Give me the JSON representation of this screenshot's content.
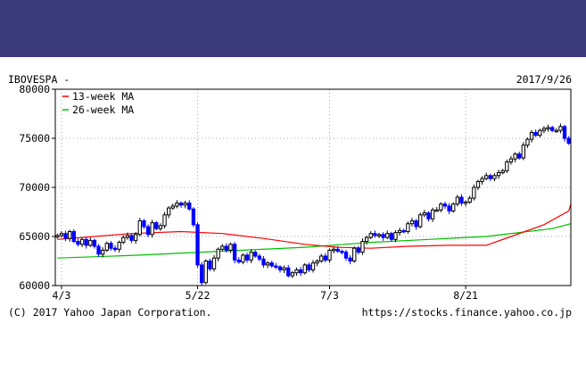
{
  "header": {
    "symbol": "IBOVESPA -",
    "date": "2017/9/26"
  },
  "footer": {
    "copyright": "(C) 2017 Yahoo Japan Corporation.",
    "url": "https://stocks.finance.yahoo.co.jp"
  },
  "colors": {
    "banner": "#3c3c7c",
    "bull": "#000000",
    "bear": "#0000ff",
    "ma13": "#ff0000",
    "ma26": "#00c000",
    "grid": "#aaaaaa"
  },
  "chart_data": {
    "type": "candlestick",
    "ylim": [
      60000,
      80000
    ],
    "yticks": [
      {
        "value": 60000,
        "label": "60000"
      },
      {
        "value": 65000,
        "label": "65000"
      },
      {
        "value": 70000,
        "label": "70000"
      },
      {
        "value": 75000,
        "label": "75000"
      },
      {
        "value": 80000,
        "label": "80000"
      }
    ],
    "num_sessions": 125,
    "xticks": [
      {
        "index": 1,
        "label": "4/3"
      },
      {
        "index": 34,
        "label": "5/22"
      },
      {
        "index": 66,
        "label": "7/3"
      },
      {
        "index": 99,
        "label": "8/21"
      }
    ],
    "legend": [
      {
        "name": "13-week MA",
        "color": "#ff0000"
      },
      {
        "name": "26-week MA",
        "color": "#00c000"
      }
    ],
    "closes": [
      65100,
      65300,
      64800,
      65500,
      64500,
      64200,
      64700,
      64100,
      64600,
      64000,
      63200,
      63600,
      64300,
      63800,
      63700,
      64400,
      64900,
      65100,
      64600,
      65200,
      66600,
      66000,
      65200,
      66400,
      65800,
      66100,
      67200,
      67900,
      68100,
      68400,
      68200,
      68400,
      67800,
      66200,
      62100,
      60300,
      62500,
      61700,
      62800,
      63700,
      64000,
      63600,
      64200,
      62600,
      62400,
      63100,
      62600,
      63400,
      63000,
      62700,
      62100,
      62300,
      62000,
      61900,
      61600,
      61800,
      61000,
      61300,
      61600,
      61300,
      62100,
      61600,
      62300,
      62500,
      63000,
      62600,
      63600,
      63700,
      63500,
      63400,
      62800,
      62500,
      63800,
      63400,
      64500,
      64900,
      65300,
      65100,
      65200,
      64900,
      65300,
      64700,
      65400,
      65600,
      65500,
      66300,
      66600,
      66000,
      67200,
      67400,
      66800,
      67700,
      67700,
      68300,
      68100,
      67600,
      68300,
      69000,
      68400,
      68500,
      68900,
      70000,
      70600,
      70900,
      71200,
      70900,
      71200,
      71500,
      71700,
      72600,
      72900,
      73400,
      73000,
      74300,
      74900,
      75600,
      75300,
      75800,
      76000,
      76100,
      75800,
      75800,
      76200,
      75000,
      74500
    ],
    "ma13": [
      [
        0,
        64700
      ],
      [
        18,
        65300
      ],
      [
        30,
        65500
      ],
      [
        40,
        65300
      ],
      [
        50,
        64800
      ],
      [
        60,
        64200
      ],
      [
        68,
        63900
      ],
      [
        76,
        63800
      ],
      [
        85,
        64000
      ],
      [
        95,
        64100
      ],
      [
        104,
        64100
      ],
      [
        110,
        65000
      ],
      [
        118,
        66200
      ],
      [
        124,
        67600
      ],
      [
        130,
        68300
      ]
    ],
    "ma26": [
      [
        0,
        62800
      ],
      [
        20,
        63100
      ],
      [
        40,
        63500
      ],
      [
        60,
        63900
      ],
      [
        76,
        64400
      ],
      [
        90,
        64700
      ],
      [
        104,
        65000
      ],
      [
        112,
        65400
      ],
      [
        120,
        65800
      ],
      [
        130,
        66300
      ]
    ]
  }
}
